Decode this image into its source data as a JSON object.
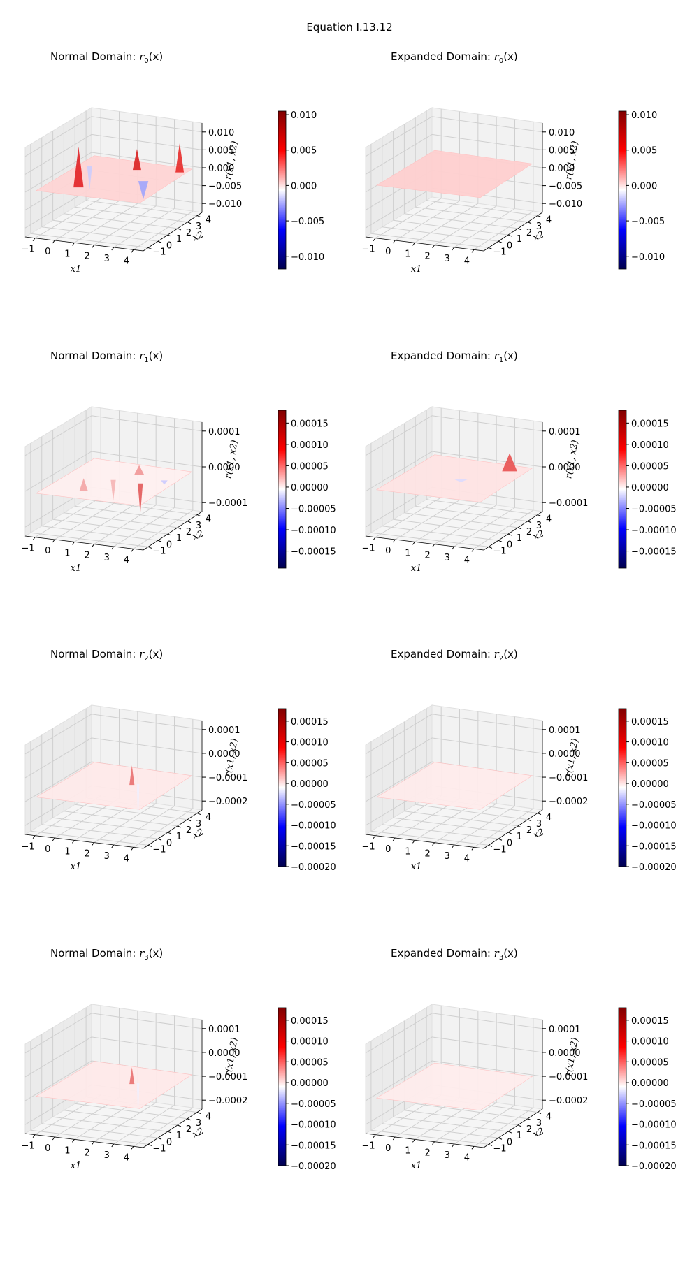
{
  "figure_title": "Equation I.13.12",
  "chart_data": [
    {
      "type": "surface3d",
      "title_prefix": "Normal Domain: ",
      "fn": "r",
      "sub": "0",
      "arg": "(x)",
      "x": [
        -1,
        0,
        1,
        2,
        3,
        4
      ],
      "y": [
        -1,
        0,
        1,
        2,
        3,
        4
      ],
      "z_ticks": [
        "0.010",
        "0.005",
        "0.000",
        "−0.005",
        "−0.010"
      ],
      "xlabel": "x1",
      "ylabel": "x2",
      "zlabel": "r(x1, x2)",
      "cbar_ticks": [
        "0.010",
        "0.005",
        "0.000",
        "−0.005",
        "−0.010"
      ],
      "cbar_range": [
        -0.0118,
        0.0105
      ],
      "cmap": "seismic"
    },
    {
      "type": "surface3d",
      "title_prefix": "Expanded Domain: ",
      "fn": "r",
      "sub": "0",
      "arg": "(x)",
      "x": [
        -1,
        0,
        1,
        2,
        3,
        4
      ],
      "y": [
        -1,
        0,
        1,
        2,
        3,
        4
      ],
      "z_ticks": [
        "0.010",
        "0.005",
        "0.000",
        "−0.005",
        "−0.010"
      ],
      "xlabel": "x1",
      "ylabel": "x2",
      "zlabel": "r(x1, x2)",
      "cbar_ticks": [
        "0.010",
        "0.005",
        "0.000",
        "−0.005",
        "−0.010"
      ],
      "cbar_range": [
        -0.0118,
        0.0105
      ],
      "cmap": "seismic"
    },
    {
      "type": "surface3d",
      "title_prefix": "Normal Domain: ",
      "fn": "r",
      "sub": "1",
      "arg": "(x)",
      "x": [
        -1,
        0,
        1,
        2,
        3,
        4
      ],
      "y": [
        -1,
        0,
        1,
        2,
        3,
        4
      ],
      "z_ticks": [
        "0.0001",
        "0.0000",
        "−0.0001"
      ],
      "xlabel": "x1",
      "ylabel": "x2",
      "zlabel": "r(x1, x2)",
      "cbar_ticks": [
        "0.00015",
        "0.00010",
        "0.00005",
        "0.00000",
        "−0.00005",
        "−0.00010",
        "−0.00015"
      ],
      "cbar_range": [
        -0.00019,
        0.00018
      ],
      "cmap": "seismic"
    },
    {
      "type": "surface3d",
      "title_prefix": "Expanded Domain: ",
      "fn": "r",
      "sub": "1",
      "arg": "(x)",
      "x": [
        -1,
        0,
        1,
        2,
        3,
        4
      ],
      "y": [
        -1,
        0,
        1,
        2,
        3,
        4
      ],
      "z_ticks": [
        "0.0001",
        "0.0000",
        "−0.0001"
      ],
      "xlabel": "x1",
      "ylabel": "x2",
      "zlabel": "r(x1, x2)",
      "cbar_ticks": [
        "0.00015",
        "0.00010",
        "0.00005",
        "0.00000",
        "−0.00005",
        "−0.00010",
        "−0.00015"
      ],
      "cbar_range": [
        -0.00019,
        0.00018
      ],
      "cmap": "seismic"
    },
    {
      "type": "surface3d",
      "title_prefix": "Normal Domain: ",
      "fn": "r",
      "sub": "2",
      "arg": "(x)",
      "x": [
        -1,
        0,
        1,
        2,
        3,
        4
      ],
      "y": [
        -1,
        0,
        1,
        2,
        3,
        4
      ],
      "z_ticks": [
        "0.0001",
        "0.0000",
        "−0.0001",
        "−0.0002"
      ],
      "xlabel": "x1",
      "ylabel": "x2",
      "zlabel": "r(x1, x2)",
      "cbar_ticks": [
        "0.00015",
        "0.00010",
        "0.00005",
        "0.00000",
        "−0.00005",
        "−0.00010",
        "−0.00015",
        "−0.00020"
      ],
      "cbar_range": [
        -0.0002,
        0.00018
      ],
      "cmap": "seismic"
    },
    {
      "type": "surface3d",
      "title_prefix": "Expanded Domain: ",
      "fn": "r",
      "sub": "2",
      "arg": "(x)",
      "x": [
        -1,
        0,
        1,
        2,
        3,
        4
      ],
      "y": [
        -1,
        0,
        1,
        2,
        3,
        4
      ],
      "z_ticks": [
        "0.0001",
        "0.0000",
        "−0.0001",
        "−0.0002"
      ],
      "xlabel": "x1",
      "ylabel": "x2",
      "zlabel": "r(x1, x2)",
      "cbar_ticks": [
        "0.00015",
        "0.00010",
        "0.00005",
        "0.00000",
        "−0.00005",
        "−0.00010",
        "−0.00015",
        "−0.00020"
      ],
      "cbar_range": [
        -0.0002,
        0.00018
      ],
      "cmap": "seismic"
    },
    {
      "type": "surface3d",
      "title_prefix": "Normal Domain: ",
      "fn": "r",
      "sub": "3",
      "arg": "(x)",
      "x": [
        -1,
        0,
        1,
        2,
        3,
        4
      ],
      "y": [
        -1,
        0,
        1,
        2,
        3,
        4
      ],
      "z_ticks": [
        "0.0001",
        "0.0000",
        "−0.0001",
        "−0.0002"
      ],
      "xlabel": "x1",
      "ylabel": "x2",
      "zlabel": "r(x1, x2)",
      "cbar_ticks": [
        "0.00015",
        "0.00010",
        "0.00005",
        "0.00000",
        "−0.00005",
        "−0.00010",
        "−0.00015",
        "−0.00020"
      ],
      "cbar_range": [
        -0.0002,
        0.00018
      ],
      "cmap": "seismic"
    },
    {
      "type": "surface3d",
      "title_prefix": "Expanded Domain: ",
      "fn": "r",
      "sub": "3",
      "arg": "(x)",
      "x": [
        -1,
        0,
        1,
        2,
        3,
        4
      ],
      "y": [
        -1,
        0,
        1,
        2,
        3,
        4
      ],
      "z_ticks": [
        "0.0001",
        "0.0000",
        "−0.0001",
        "−0.0002"
      ],
      "xlabel": "x1",
      "ylabel": "x2",
      "zlabel": "r(x1, x2)",
      "cbar_ticks": [
        "0.00015",
        "0.00010",
        "0.00005",
        "0.00000",
        "−0.00005",
        "−0.00010",
        "−0.00015",
        "−0.00020"
      ],
      "cbar_range": [
        -0.0002,
        0.00018
      ],
      "cmap": "seismic"
    }
  ]
}
